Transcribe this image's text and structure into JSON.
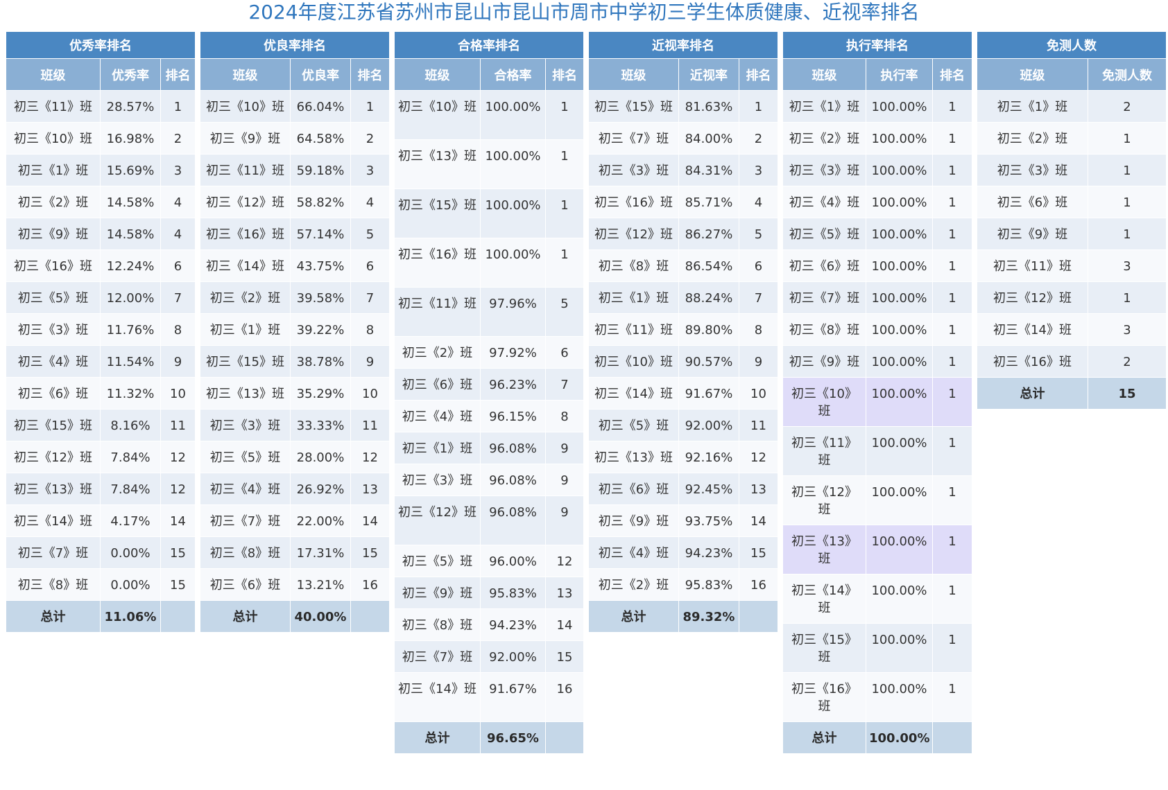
{
  "title": "2024年度江苏省苏州市昆山市昆山市周市中学初三学生体质健康、近视率排名",
  "panels": [
    {
      "id": "excellent",
      "title": "优秀率排名",
      "headers": [
        "班级",
        "优秀率",
        "排名"
      ],
      "rows": [
        [
          "初三《11》班",
          "28.57%",
          "1"
        ],
        [
          "初三《10》班",
          "16.98%",
          "2"
        ],
        [
          "初三《1》班",
          "15.69%",
          "3"
        ],
        [
          "初三《2》班",
          "14.58%",
          "4"
        ],
        [
          "初三《9》班",
          "14.58%",
          "4"
        ],
        [
          "初三《16》班",
          "12.24%",
          "6"
        ],
        [
          "初三《5》班",
          "12.00%",
          "7"
        ],
        [
          "初三《3》班",
          "11.76%",
          "8"
        ],
        [
          "初三《4》班",
          "11.54%",
          "9"
        ],
        [
          "初三《6》班",
          "11.32%",
          "10"
        ],
        [
          "初三《15》班",
          "8.16%",
          "11"
        ],
        [
          "初三《12》班",
          "7.84%",
          "12"
        ],
        [
          "初三《13》班",
          "7.84%",
          "12"
        ],
        [
          "初三《14》班",
          "4.17%",
          "14"
        ],
        [
          "初三《7》班",
          "0.00%",
          "15"
        ],
        [
          "初三《8》班",
          "0.00%",
          "15"
        ]
      ],
      "total": [
        "总计",
        "11.06%",
        ""
      ]
    },
    {
      "id": "good",
      "title": "优良率排名",
      "headers": [
        "班级",
        "优良率",
        "排名"
      ],
      "rows": [
        [
          "初三《10》班",
          "66.04%",
          "1"
        ],
        [
          "初三《9》班",
          "64.58%",
          "2"
        ],
        [
          "初三《11》班",
          "59.18%",
          "3"
        ],
        [
          "初三《12》班",
          "58.82%",
          "4"
        ],
        [
          "初三《16》班",
          "57.14%",
          "5"
        ],
        [
          "初三《14》班",
          "43.75%",
          "6"
        ],
        [
          "初三《2》班",
          "39.58%",
          "7"
        ],
        [
          "初三《1》班",
          "39.22%",
          "8"
        ],
        [
          "初三《15》班",
          "38.78%",
          "9"
        ],
        [
          "初三《13》班",
          "35.29%",
          "10"
        ],
        [
          "初三《3》班",
          "33.33%",
          "11"
        ],
        [
          "初三《5》班",
          "28.00%",
          "12"
        ],
        [
          "初三《4》班",
          "26.92%",
          "13"
        ],
        [
          "初三《7》班",
          "22.00%",
          "14"
        ],
        [
          "初三《8》班",
          "17.31%",
          "15"
        ],
        [
          "初三《6》班",
          "13.21%",
          "16"
        ]
      ],
      "total": [
        "总计",
        "40.00%",
        ""
      ]
    },
    {
      "id": "pass",
      "title": "合格率排名",
      "headers": [
        "班级",
        "合格率",
        "排名"
      ],
      "rows": [
        [
          "初三《10》班",
          "100.00%",
          "1"
        ],
        [
          "初三《13》班",
          "100.00%",
          "1"
        ],
        [
          "初三《15》班",
          "100.00%",
          "1"
        ],
        [
          "初三《16》班",
          "100.00%",
          "1"
        ],
        [
          "初三《11》班",
          "97.96%",
          "5"
        ],
        [
          "初三《2》班",
          "97.92%",
          "6"
        ],
        [
          "初三《6》班",
          "96.23%",
          "7"
        ],
        [
          "初三《4》班",
          "96.15%",
          "8"
        ],
        [
          "初三《1》班",
          "96.08%",
          "9"
        ],
        [
          "初三《3》班",
          "96.08%",
          "9"
        ],
        [
          "初三《12》班",
          "96.08%",
          "9"
        ],
        [
          "初三《5》班",
          "96.00%",
          "12"
        ],
        [
          "初三《9》班",
          "95.83%",
          "13"
        ],
        [
          "初三《8》班",
          "94.23%",
          "14"
        ],
        [
          "初三《7》班",
          "92.00%",
          "15"
        ],
        [
          "初三《14》班",
          "91.67%",
          "16"
        ]
      ],
      "total": [
        "总计",
        "96.65%",
        ""
      ]
    },
    {
      "id": "myopia",
      "title": "近视率排名",
      "headers": [
        "班级",
        "近视率",
        "排名"
      ],
      "rows": [
        [
          "初三《15》班",
          "81.63%",
          "1"
        ],
        [
          "初三《7》班",
          "84.00%",
          "2"
        ],
        [
          "初三《3》班",
          "84.31%",
          "3"
        ],
        [
          "初三《16》班",
          "85.71%",
          "4"
        ],
        [
          "初三《12》班",
          "86.27%",
          "5"
        ],
        [
          "初三《8》班",
          "86.54%",
          "6"
        ],
        [
          "初三《1》班",
          "88.24%",
          "7"
        ],
        [
          "初三《11》班",
          "89.80%",
          "8"
        ],
        [
          "初三《10》班",
          "90.57%",
          "9"
        ],
        [
          "初三《14》班",
          "91.67%",
          "10"
        ],
        [
          "初三《5》班",
          "92.00%",
          "11"
        ],
        [
          "初三《13》班",
          "92.16%",
          "12"
        ],
        [
          "初三《6》班",
          "92.45%",
          "13"
        ],
        [
          "初三《9》班",
          "93.75%",
          "14"
        ],
        [
          "初三《4》班",
          "94.23%",
          "15"
        ],
        [
          "初三《2》班",
          "95.83%",
          "16"
        ]
      ],
      "total": [
        "总计",
        "89.32%",
        ""
      ]
    },
    {
      "id": "execution",
      "title": "执行率排名",
      "headers": [
        "班级",
        "执行率",
        "排名"
      ],
      "rows": [
        [
          "初三《1》班",
          "100.00%",
          "1"
        ],
        [
          "初三《2》班",
          "100.00%",
          "1"
        ],
        [
          "初三《3》班",
          "100.00%",
          "1"
        ],
        [
          "初三《4》班",
          "100.00%",
          "1"
        ],
        [
          "初三《5》班",
          "100.00%",
          "1"
        ],
        [
          "初三《6》班",
          "100.00%",
          "1"
        ],
        [
          "初三《7》班",
          "100.00%",
          "1"
        ],
        [
          "初三《8》班",
          "100.00%",
          "1"
        ],
        [
          "初三《9》班",
          "100.00%",
          "1"
        ],
        [
          "初三《10》班",
          "100.00%",
          "1"
        ],
        [
          "初三《11》班",
          "100.00%",
          "1"
        ],
        [
          "初三《12》班",
          "100.00%",
          "1"
        ],
        [
          "初三《13》班",
          "100.00%",
          "1"
        ],
        [
          "初三《14》班",
          "100.00%",
          "1"
        ],
        [
          "初三《15》班",
          "100.00%",
          "1"
        ],
        [
          "初三《16》班",
          "100.00%",
          "1"
        ]
      ],
      "total": [
        "总计",
        "100.00%",
        ""
      ]
    },
    {
      "id": "exempt",
      "title": "免测人数",
      "headers": [
        "班级",
        "免测人数"
      ],
      "rows": [
        [
          "初三《1》班",
          "2"
        ],
        [
          "初三《2》班",
          "1"
        ],
        [
          "初三《3》班",
          "1"
        ],
        [
          "初三《6》班",
          "1"
        ],
        [
          "初三《9》班",
          "1"
        ],
        [
          "初三《11》班",
          "3"
        ],
        [
          "初三《12》班",
          "1"
        ],
        [
          "初三《14》班",
          "3"
        ],
        [
          "初三《16》班",
          "2"
        ]
      ],
      "total": [
        "总计",
        "15"
      ]
    }
  ]
}
